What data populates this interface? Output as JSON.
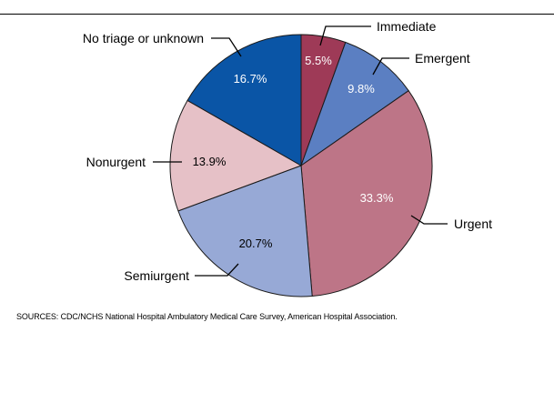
{
  "chart_data": {
    "type": "pie",
    "title": "",
    "slices": [
      {
        "label": "Immediate",
        "value": 5.5,
        "display": "5.5%",
        "color": "#9e3a57",
        "text_color": "#ffffff"
      },
      {
        "label": "Emergent",
        "value": 9.8,
        "display": "9.8%",
        "color": "#5b7fc2",
        "text_color": "#ffffff"
      },
      {
        "label": "Urgent",
        "value": 33.3,
        "display": "33.3%",
        "color": "#bd7587",
        "text_color": "#ffffff"
      },
      {
        "label": "Semiurgent",
        "value": 20.7,
        "display": "20.7%",
        "color": "#97a9d6",
        "text_color": "#000000"
      },
      {
        "label": "Nonurgent",
        "value": 13.9,
        "display": "13.9%",
        "color": "#e6c1c7",
        "text_color": "#000000"
      },
      {
        "label": "No triage or unknown",
        "value": 16.7,
        "display": "16.7%",
        "color": "#0a55a6",
        "text_color": "#ffffff"
      }
    ],
    "start_angle_deg": 0,
    "direction": "clockwise"
  },
  "footer": {
    "sources": "SOURCES: CDC/NCHS National Hospital Ambulatory Medical Care Survey, American Hospital Association."
  }
}
